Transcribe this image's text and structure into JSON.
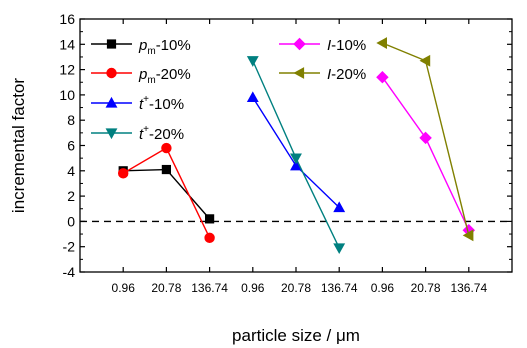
{
  "chart_data": {
    "type": "line",
    "xlabel": "particle size / μm",
    "ylabel": "incremental factor",
    "ylim": [
      -4,
      16
    ],
    "yticks": [
      -4,
      -2,
      0,
      2,
      4,
      6,
      8,
      10,
      12,
      14,
      16
    ],
    "categories": [
      "0.96",
      "20.78",
      "136.74"
    ],
    "groups": 3,
    "reference_line": {
      "y": 0,
      "style": "dashed"
    },
    "legend_placement": "top",
    "series": [
      {
        "name": "pm-10%",
        "label_main": "p",
        "label_sub": "m",
        "label_rest": "-10%",
        "color": "#000000",
        "marker": "square",
        "group": 0,
        "values": [
          4.0,
          4.1,
          0.2
        ]
      },
      {
        "name": "pm-20%",
        "label_main": "p",
        "label_sub": "m",
        "label_rest": "-20%",
        "color": "#ff0000",
        "marker": "circle",
        "group": 0,
        "values": [
          3.8,
          5.8,
          -1.3
        ]
      },
      {
        "name": "t+-10%",
        "label_main": "t",
        "label_sup": "+",
        "label_rest": "-10%",
        "color": "#0000ff",
        "marker": "triangle-up",
        "group": 1,
        "values": [
          9.8,
          4.4,
          1.1
        ]
      },
      {
        "name": "t+-20%",
        "label_main": "t",
        "label_sup": "+",
        "label_rest": "-20%",
        "color": "#008080",
        "marker": "triangle-down",
        "group": 1,
        "values": [
          12.7,
          5.0,
          -2.1
        ]
      },
      {
        "name": "I-10%",
        "label_main": "I",
        "label_rest": "-10%",
        "color": "#ff00ff",
        "marker": "diamond",
        "group": 2,
        "values": [
          11.4,
          6.6,
          -0.7
        ]
      },
      {
        "name": "I-20%",
        "label_main": "I",
        "label_rest": "-20%",
        "color": "#808000",
        "marker": "triangle-left",
        "group": 2,
        "values": [
          14.1,
          12.7,
          -1.1
        ]
      }
    ]
  }
}
